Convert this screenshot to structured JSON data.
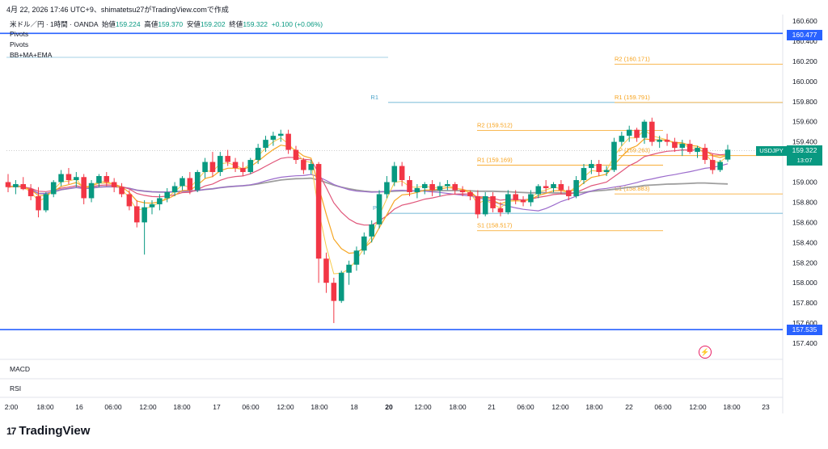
{
  "header": {
    "caption": "4月 22, 2026 17:46 UTC+9、shimatetsu27がTradingView.comで作成"
  },
  "legend": {
    "symbol": "米ドル／円 · 1時間 · OANDA",
    "open_label": "始値",
    "open": "159.224",
    "high_label": "高値",
    "high": "159.370",
    "low_label": "安値",
    "low": "159.202",
    "close_label": "終値",
    "close": "159.322",
    "change": "+0.100 (+0.06%)",
    "indicators": [
      "Pivots",
      "Pivots",
      "BB+MA+EMA"
    ]
  },
  "panes": {
    "macd": "MACD",
    "rsi": "RSI"
  },
  "footer": {
    "brand": "TradingView"
  },
  "price_tags": {
    "upper_line": "160.477",
    "lower_line": "157.535",
    "last_price": "159.322",
    "countdown": "13:07",
    "symbol": "USDJPY"
  },
  "colors": {
    "up": "#089981",
    "down": "#f23645",
    "hline": "#2962ff",
    "pivot_r": "#f7a21b",
    "pivot_r1": "#6fbf8a",
    "ema_fast": "#f7c948",
    "ema_slow": "#f6a623",
    "ma_pink": "#e0567a",
    "ma_purple": "#9b6bcc",
    "ma_gray": "#9e9e9e"
  },
  "chart_data": {
    "type": "candlestick",
    "timeframe": "1時間",
    "x_tick_labels": [
      "2:00",
      "18:00",
      "16",
      "06:00",
      "12:00",
      "18:00",
      "17",
      "06:00",
      "12:00",
      "18:00",
      "18",
      "20",
      "12:00",
      "18:00",
      "21",
      "06:00",
      "12:00",
      "18:00",
      "22",
      "06:00",
      "12:00",
      "18:00",
      "23"
    ],
    "y_tick_labels": [
      "160.600",
      "160.400",
      "160.200",
      "160.000",
      "159.800",
      "159.600",
      "159.400",
      "159.200",
      "159.000",
      "158.800",
      "158.600",
      "158.400",
      "158.200",
      "158.000",
      "157.800",
      "157.600",
      "157.400"
    ],
    "ylim": [
      157.35,
      160.65
    ],
    "horizontal_lines": [
      160.477,
      157.535
    ],
    "pivot_levels": [
      {
        "label": "R2 (160.171)",
        "value": 160.171
      },
      {
        "label": "R1",
        "value": 159.791
      },
      {
        "label": "R1 (159.791)",
        "value": 159.791
      },
      {
        "label": "R2 (159.512)",
        "value": 159.512
      },
      {
        "label": "P (159.263)",
        "value": 159.263
      },
      {
        "label": "R1 (159.169)",
        "value": 159.169
      },
      {
        "label": "S1 (158.883)",
        "value": 158.883
      },
      {
        "label": "P",
        "value": 158.69
      },
      {
        "label": "S1 (158.517)",
        "value": 158.517
      }
    ],
    "ohlc": [
      [
        159.0,
        159.08,
        158.9,
        158.95
      ],
      [
        158.95,
        159.02,
        158.88,
        158.98
      ],
      [
        158.98,
        159.05,
        158.92,
        158.93
      ],
      [
        158.93,
        158.98,
        158.82,
        158.86
      ],
      [
        158.86,
        158.95,
        158.65,
        158.72
      ],
      [
        158.72,
        158.9,
        158.7,
        158.88
      ],
      [
        158.88,
        159.02,
        158.85,
        159.0
      ],
      [
        159.0,
        159.12,
        158.96,
        159.08
      ],
      [
        159.08,
        159.14,
        158.98,
        159.02
      ],
      [
        159.02,
        159.1,
        158.95,
        159.05
      ],
      [
        159.05,
        159.08,
        158.78,
        158.84
      ],
      [
        158.84,
        159.02,
        158.8,
        158.99
      ],
      [
        158.99,
        159.08,
        158.95,
        159.06
      ],
      [
        159.06,
        159.1,
        158.96,
        159.0
      ],
      [
        159.0,
        159.04,
        158.9,
        158.95
      ],
      [
        158.95,
        158.99,
        158.85,
        158.88
      ],
      [
        158.88,
        158.92,
        158.72,
        158.76
      ],
      [
        158.76,
        158.82,
        158.55,
        158.6
      ],
      [
        158.6,
        158.82,
        158.28,
        158.75
      ],
      [
        158.75,
        158.82,
        158.68,
        158.78
      ],
      [
        158.78,
        158.88,
        158.72,
        158.84
      ],
      [
        158.84,
        158.94,
        158.8,
        158.9
      ],
      [
        158.9,
        159.0,
        158.86,
        158.96
      ],
      [
        158.96,
        159.06,
        158.92,
        159.04
      ],
      [
        159.04,
        159.1,
        158.88,
        158.92
      ],
      [
        158.92,
        159.12,
        158.9,
        159.1
      ],
      [
        159.1,
        159.24,
        159.04,
        159.2
      ],
      [
        159.2,
        159.3,
        159.05,
        159.1
      ],
      [
        159.1,
        159.3,
        159.06,
        159.26
      ],
      [
        159.26,
        159.32,
        159.16,
        159.2
      ],
      [
        159.2,
        159.24,
        159.1,
        159.14
      ],
      [
        159.14,
        159.2,
        159.06,
        159.1
      ],
      [
        159.1,
        159.24,
        159.08,
        159.22
      ],
      [
        159.22,
        159.38,
        159.18,
        159.34
      ],
      [
        159.34,
        159.46,
        159.3,
        159.42
      ],
      [
        159.42,
        159.5,
        159.36,
        159.46
      ],
      [
        159.46,
        159.52,
        159.4,
        159.48
      ],
      [
        159.48,
        159.52,
        159.28,
        159.32
      ],
      [
        159.32,
        159.36,
        159.18,
        159.22
      ],
      [
        159.22,
        159.24,
        159.08,
        159.12
      ],
      [
        159.12,
        159.22,
        159.08,
        159.18
      ],
      [
        159.18,
        159.2,
        158.0,
        158.24
      ],
      [
        158.24,
        158.3,
        157.9,
        158.0
      ],
      [
        158.0,
        158.05,
        157.6,
        157.82
      ],
      [
        157.82,
        158.12,
        157.8,
        158.1
      ],
      [
        158.1,
        158.22,
        157.98,
        158.18
      ],
      [
        158.18,
        158.36,
        158.12,
        158.32
      ],
      [
        158.32,
        158.5,
        158.28,
        158.46
      ],
      [
        158.46,
        158.62,
        158.4,
        158.58
      ],
      [
        158.58,
        158.92,
        158.54,
        158.88
      ],
      [
        158.88,
        159.06,
        158.84,
        159.0
      ],
      [
        159.0,
        159.2,
        158.96,
        159.16
      ],
      [
        159.16,
        159.2,
        158.96,
        159.02
      ],
      [
        159.02,
        159.06,
        158.86,
        158.9
      ],
      [
        158.9,
        158.98,
        158.84,
        158.94
      ],
      [
        158.94,
        159.0,
        158.88,
        158.98
      ],
      [
        158.98,
        159.02,
        158.86,
        158.92
      ],
      [
        158.92,
        159.0,
        158.86,
        158.96
      ],
      [
        158.96,
        159.02,
        158.92,
        158.98
      ],
      [
        158.98,
        159.0,
        158.88,
        158.92
      ],
      [
        158.92,
        158.96,
        158.86,
        158.9
      ],
      [
        158.9,
        158.92,
        158.82,
        158.86
      ],
      [
        158.86,
        158.92,
        158.64,
        158.68
      ],
      [
        158.68,
        158.9,
        158.66,
        158.86
      ],
      [
        158.86,
        158.9,
        158.7,
        158.74
      ],
      [
        158.74,
        158.8,
        158.66,
        158.7
      ],
      [
        158.7,
        158.92,
        158.68,
        158.88
      ],
      [
        158.88,
        158.92,
        158.78,
        158.82
      ],
      [
        158.82,
        158.86,
        158.76,
        158.8
      ],
      [
        158.8,
        158.92,
        158.76,
        158.88
      ],
      [
        158.88,
        158.98,
        158.84,
        158.96
      ],
      [
        158.96,
        159.02,
        158.9,
        158.94
      ],
      [
        158.94,
        159.0,
        158.9,
        158.98
      ],
      [
        158.98,
        159.02,
        158.88,
        158.92
      ],
      [
        158.92,
        158.96,
        158.82,
        158.86
      ],
      [
        158.86,
        159.06,
        158.84,
        159.02
      ],
      [
        159.02,
        159.18,
        158.98,
        159.14
      ],
      [
        159.14,
        159.22,
        159.08,
        159.18
      ],
      [
        159.18,
        159.22,
        159.06,
        159.1
      ],
      [
        159.1,
        159.16,
        159.06,
        159.12
      ],
      [
        159.12,
        159.44,
        159.1,
        159.4
      ],
      [
        159.4,
        159.5,
        159.36,
        159.46
      ],
      [
        159.46,
        159.56,
        159.4,
        159.52
      ],
      [
        159.52,
        159.54,
        159.4,
        159.44
      ],
      [
        159.44,
        159.62,
        159.38,
        159.6
      ],
      [
        159.6,
        159.64,
        159.36,
        159.4
      ],
      [
        159.4,
        159.46,
        159.34,
        159.42
      ],
      [
        159.42,
        159.48,
        159.36,
        159.4
      ],
      [
        159.4,
        159.44,
        159.3,
        159.34
      ],
      [
        159.34,
        159.42,
        159.26,
        159.38
      ],
      [
        159.38,
        159.42,
        159.28,
        159.3
      ],
      [
        159.3,
        159.36,
        159.24,
        159.34
      ],
      [
        159.34,
        159.38,
        159.18,
        159.22
      ],
      [
        159.22,
        159.28,
        159.08,
        159.12
      ],
      [
        159.12,
        159.22,
        159.1,
        159.2
      ],
      [
        159.224,
        159.37,
        159.202,
        159.322
      ]
    ]
  }
}
